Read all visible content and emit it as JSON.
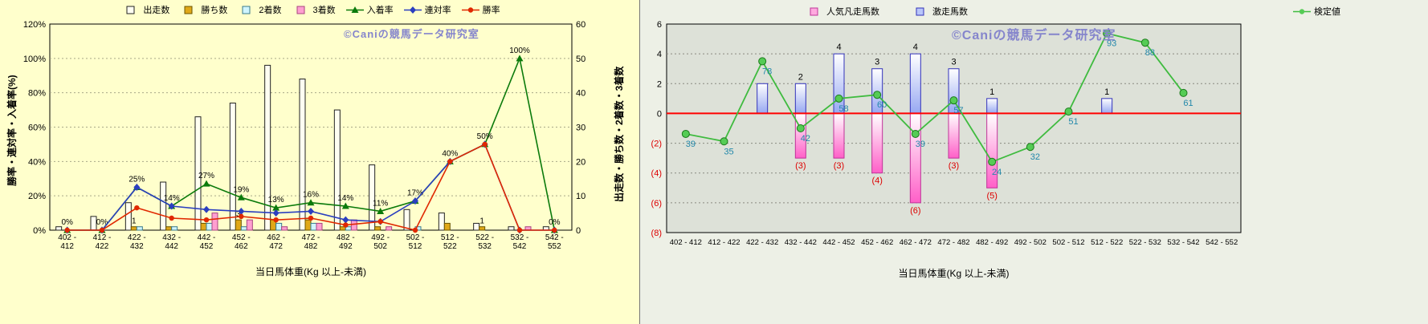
{
  "chart_data": [
    {
      "id": "results-by-weight",
      "type": "bar",
      "subtype": "bar+line combo",
      "background": "#FFFFCC",
      "watermark": "©Caniの競馬データ研究室",
      "x_title": "当日馬体重(Kg 以上-未満)",
      "y_left_title": "勝率・連対率・入着率(%)",
      "y_right_title": "出走数・勝ち数・2着数・3着数",
      "y_left": {
        "min": 0,
        "max": 120,
        "step": 20,
        "tick_suffix": "%"
      },
      "y_right": {
        "min": 0,
        "max": 60,
        "step": 10
      },
      "grid": "horizontal-dotted",
      "legend_position": "top-center",
      "categories": [
        "402 - 412",
        "412 - 422",
        "422 - 432",
        "432 - 442",
        "442 - 452",
        "452 - 462",
        "462 - 472",
        "472 - 482",
        "482 - 492",
        "492 - 502",
        "502 - 512",
        "512 - 522",
        "522 - 532",
        "532 - 542",
        "542 - 552"
      ],
      "bar_series": [
        {
          "key": "starts",
          "name": "出走数",
          "kind": "bar",
          "axis": "right",
          "fill": "#FFFFF2",
          "border": "#222222",
          "values": [
            1,
            4,
            8,
            14,
            33,
            37,
            48,
            44,
            35,
            19,
            6,
            5,
            2,
            1,
            1
          ]
        },
        {
          "key": "wins",
          "name": "勝ち数",
          "kind": "bar",
          "axis": "right",
          "fill": "#E0A818",
          "border": "#6B5500",
          "values": [
            0,
            0,
            1,
            1,
            2,
            3,
            3,
            3,
            1,
            1,
            0,
            2,
            1,
            0,
            0
          ],
          "labels": [
            "",
            "",
            "1",
            "",
            "",
            "3",
            "",
            "",
            "",
            "",
            "",
            "",
            "1",
            "",
            ""
          ]
        },
        {
          "key": "seconds",
          "name": "2着数",
          "kind": "bar",
          "axis": "right",
          "fill": "#CFF5FF",
          "border": "#3A7A8A",
          "values": [
            0,
            0,
            1,
            1,
            2,
            1,
            2,
            2,
            1,
            0,
            1,
            0,
            0,
            0,
            0
          ]
        },
        {
          "key": "thirds",
          "name": "3着数",
          "kind": "bar",
          "axis": "right",
          "fill": "#FF9FD0",
          "border": "#A8457F",
          "values": [
            0,
            0,
            0,
            0,
            5,
            3,
            1,
            2,
            3,
            1,
            0,
            0,
            0,
            1,
            0
          ]
        }
      ],
      "line_series": [
        {
          "key": "place-rate",
          "name": "入着率",
          "kind": "line",
          "axis": "left",
          "marker": "triangle",
          "color": "#0B7A0B",
          "values": [
            0,
            0,
            25,
            14,
            27,
            19,
            13,
            16,
            14,
            11,
            17,
            40,
            50,
            100,
            0
          ],
          "labels": [
            "0%",
            "0%",
            "25%",
            "14%",
            "27%",
            "19%",
            "13%",
            "16%",
            "14%",
            "11%",
            "17%",
            "40%",
            "50%",
            "100%",
            "0%"
          ]
        },
        {
          "key": "quinella-rate",
          "name": "連対率",
          "kind": "line",
          "axis": "left",
          "marker": "diamond",
          "color": "#2B3FBF",
          "values": [
            0,
            0,
            25,
            14,
            12,
            11,
            10,
            11,
            6,
            5,
            17,
            40,
            50,
            0,
            0
          ]
        },
        {
          "key": "win-rate",
          "name": "勝率",
          "kind": "line",
          "axis": "left",
          "marker": "circle",
          "color": "#E02800",
          "values": [
            0,
            0,
            13,
            7,
            6,
            8,
            6,
            7,
            3,
            5,
            0,
            40,
            50,
            0,
            0
          ]
        }
      ]
    },
    {
      "id": "flop-shock-by-weight",
      "type": "bar",
      "subtype": "diverging bar+line combo",
      "background": "#DDE1D8",
      "watermark": "©Caniの競馬データ研究室",
      "x_title": "当日馬体重(Kg 以上-未満)",
      "y": {
        "min": -8,
        "max": 6,
        "step": 2,
        "negative_format": "parentheses",
        "negative_color": "#DD0000"
      },
      "zero_line_color": "#FF0000",
      "grid": "horizontal-dotted",
      "legend_position": "top",
      "categories": [
        "402 - 412",
        "412 - 422",
        "422 - 432",
        "432 - 442",
        "442 - 452",
        "452 - 462",
        "462 - 472",
        "472 - 482",
        "482 - 492",
        "492 - 502",
        "502 - 512",
        "512 - 522",
        "522 - 532",
        "532 - 542",
        "542 - 552"
      ],
      "bar_series": [
        {
          "key": "favorite-flops",
          "name": "人気凡走馬数",
          "kind": "bar",
          "direction": "down",
          "border": "#C03399",
          "legend_fill": "#FFAADF",
          "label_color": "#DD0000",
          "values": [
            0,
            0,
            0,
            3,
            3,
            4,
            6,
            3,
            5,
            0,
            0,
            0,
            0,
            0,
            0
          ],
          "labels": [
            "",
            "",
            "",
            "(3)",
            "(3)",
            "(4)",
            "(6)",
            "(3)",
            "(5)",
            "",
            "",
            "",
            "",
            "",
            ""
          ]
        },
        {
          "key": "shock-runners",
          "name": "激走馬数",
          "kind": "bar",
          "direction": "up",
          "border": "#3333BB",
          "legend_fill": "#B9C6FA",
          "label_color": "#000000",
          "values": [
            0,
            0,
            2,
            2,
            4,
            3,
            4,
            3,
            1,
            0,
            0,
            1,
            0,
            0,
            0
          ],
          "labels": [
            "",
            "",
            "",
            "2",
            "4",
            "3",
            "4",
            "3",
            "1",
            "",
            "",
            "1",
            "",
            "",
            ""
          ]
        }
      ],
      "line_series": [
        {
          "key": "test-value",
          "name": "検定値",
          "kind": "line",
          "marker": "circle",
          "color": "#3FBB3F",
          "marker_fill": "#55CC55",
          "marker_border": "#1B7A1B",
          "label_color": "#2288AA",
          "plot_center": 50,
          "plot_divisor": 8,
          "values": [
            39,
            35,
            78,
            42,
            58,
            60,
            39,
            57,
            24,
            32,
            51,
            93,
            88,
            61,
            null
          ]
        }
      ]
    }
  ]
}
